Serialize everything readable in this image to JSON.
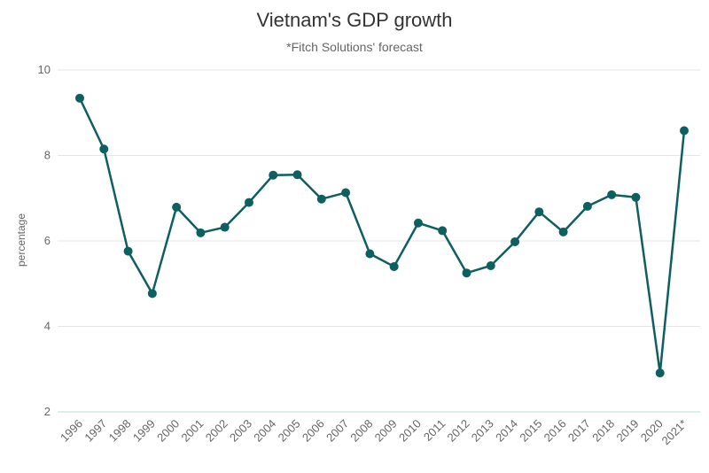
{
  "colors": {
    "series": "#0e5f5f",
    "axis": "#b8dcd6",
    "grid": "#e6e6e6"
  },
  "chart_data": {
    "type": "line",
    "title": "Vietnam's GDP growth",
    "subtitle": "*Fitch Solutions' forecast",
    "xlabel": "",
    "ylabel": "percentage",
    "ylim": [
      2,
      10
    ],
    "yticks": [
      2,
      4,
      6,
      8,
      10
    ],
    "grid": true,
    "legend": "none",
    "categories": [
      "1996",
      "1997",
      "1998",
      "1999",
      "2000",
      "2001",
      "2002",
      "2003",
      "2004",
      "2005",
      "2006",
      "2007",
      "2008",
      "2009",
      "2010",
      "2011",
      "2012",
      "2013",
      "2014",
      "2015",
      "2016",
      "2017",
      "2018",
      "2019",
      "2020",
      "2021*"
    ],
    "series": [
      {
        "values": [
          9.34,
          8.15,
          5.76,
          4.77,
          6.79,
          6.19,
          6.32,
          6.9,
          7.54,
          7.55,
          6.98,
          7.13,
          5.7,
          5.4,
          6.42,
          6.24,
          5.25,
          5.42,
          5.98,
          6.68,
          6.21,
          6.81,
          7.08,
          7.02,
          2.91,
          8.58
        ]
      }
    ]
  }
}
